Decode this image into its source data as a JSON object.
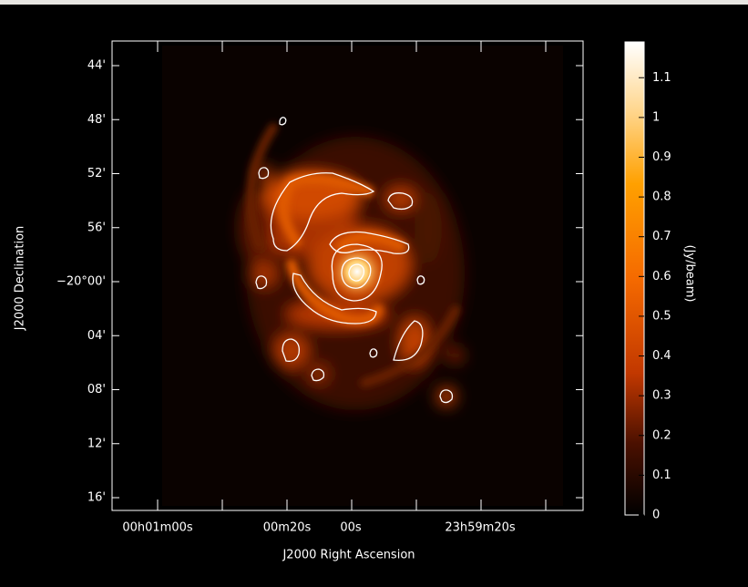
{
  "viewer": {
    "x_axis_title": "J2000 Right Ascension",
    "y_axis_title": "J2000 Declination",
    "y_ticks": [
      "44'",
      "48'",
      "52'",
      "56'",
      "−20°00'",
      "04'",
      "08'",
      "12'",
      "16'"
    ],
    "x_ticks": [
      "00h01m00s",
      "00m20s",
      "00s",
      "23h59m20s"
    ]
  },
  "colorbar": {
    "label": "(Jy/beam)",
    "lim": [
      0,
      1.19
    ],
    "ticks": [
      0,
      0.1,
      0.2,
      0.3,
      0.4,
      0.5,
      0.6,
      0.7,
      0.8,
      0.9,
      1,
      1.1
    ]
  }
}
